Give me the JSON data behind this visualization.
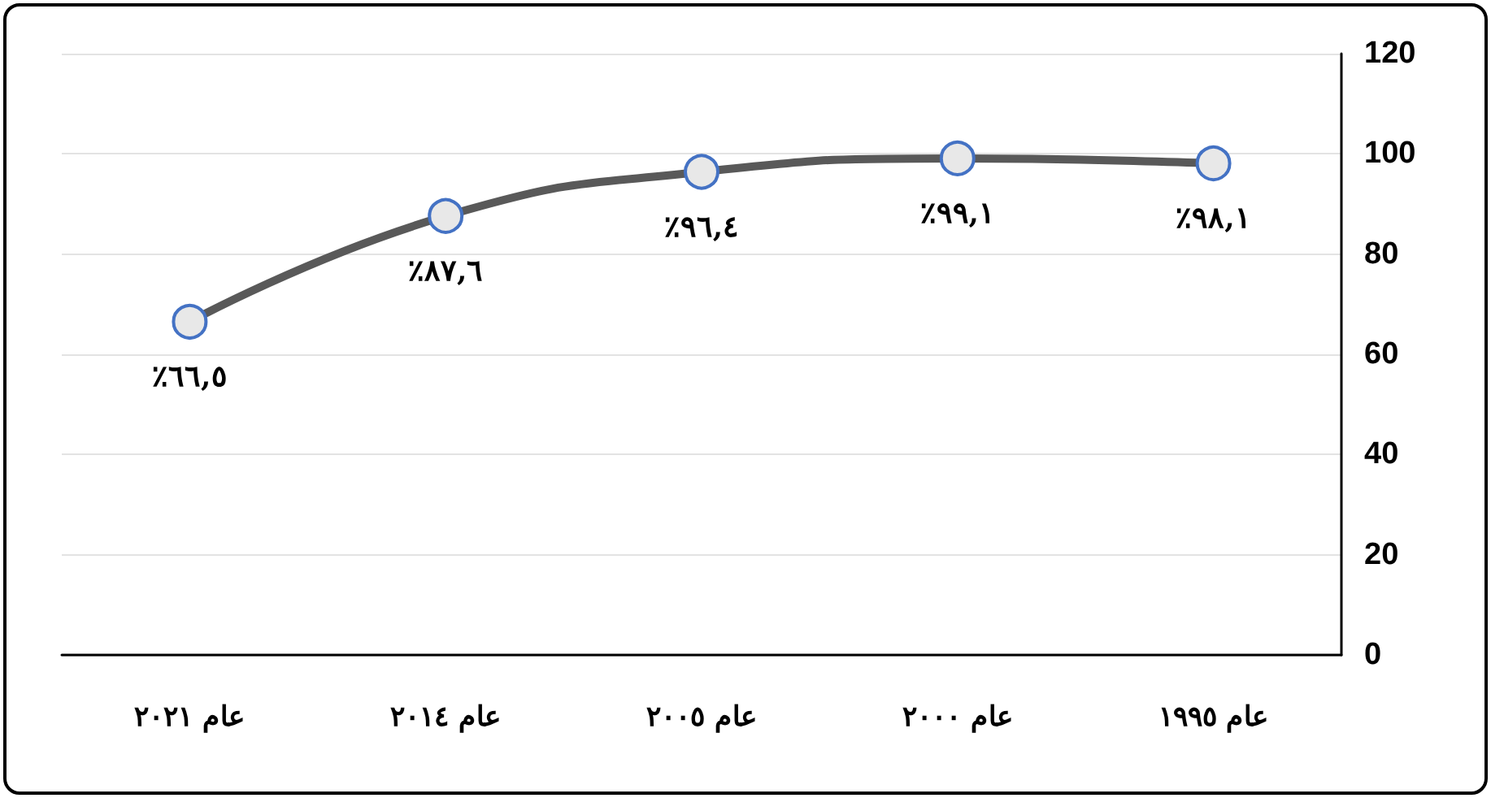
{
  "chart_data": {
    "type": "line",
    "categories": [
      "عام ٢٠٢١",
      "عام ٢٠١٤",
      "عام ٢٠٠٥",
      "عام ٢٠٠٠",
      "عام ١٩٩٥"
    ],
    "series": [
      {
        "color": "#595959",
        "values": [
          66.5,
          87.6,
          96.4,
          99.1,
          98.1
        ],
        "value_labels": [
          "٪٦٦,٥",
          "٪٨٧,٦",
          "٪٩٦,٤",
          "٪٩٩,١",
          "٪٩٨,١"
        ]
      }
    ],
    "ylim": [
      0,
      120
    ],
    "yticks": [
      0,
      20,
      40,
      60,
      80,
      100,
      120
    ],
    "grid": "y",
    "marker": "circle",
    "line_style": "solid"
  }
}
